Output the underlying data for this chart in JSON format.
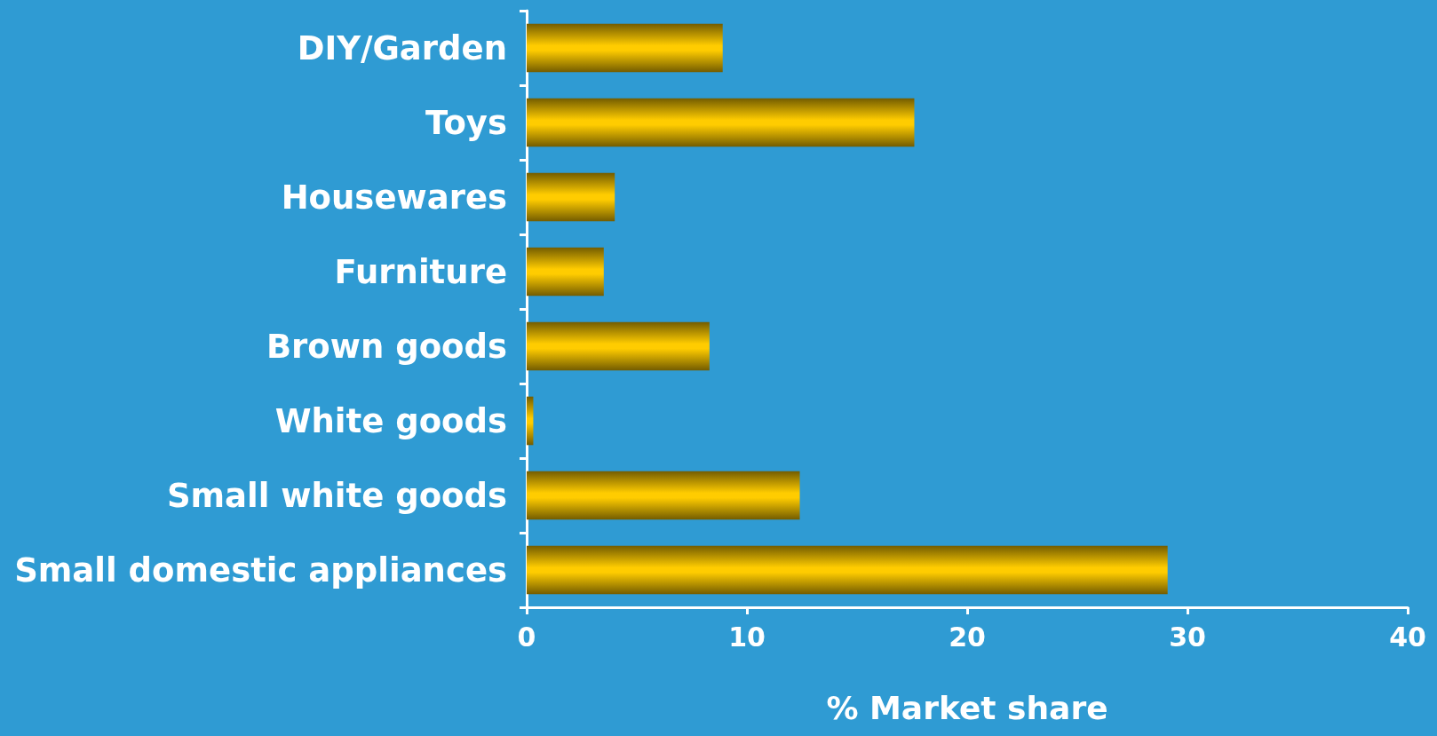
{
  "chart_data": {
    "type": "bar",
    "orientation": "horizontal",
    "xlabel": "% Market share",
    "categories": [
      "DIY/Garden",
      "Toys",
      "Housewares",
      "Furniture",
      "Brown goods",
      "White goods",
      "Small white goods",
      "Small domestic appliances"
    ],
    "values": [
      8.9,
      17.6,
      4.0,
      3.5,
      8.3,
      0.3,
      12.4,
      29.1
    ],
    "color": "#ffcc00",
    "xlim": [
      0,
      40
    ],
    "xticks": [
      0,
      10,
      20,
      30,
      40
    ],
    "grid": false
  }
}
